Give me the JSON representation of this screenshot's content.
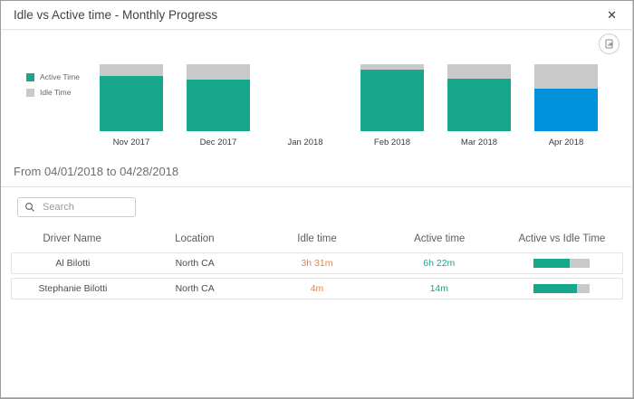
{
  "dialog": {
    "title": "Idle vs Active time - Monthly Progress",
    "close_glyph": "✕"
  },
  "chart_data": {
    "type": "bar",
    "subtype": "stacked-100-column",
    "title": "Idle vs Active time - Monthly Progress",
    "categories": [
      "Nov 2017",
      "Dec 2017",
      "Jan 2018",
      "Feb 2018",
      "Mar 2018",
      "Apr 2018"
    ],
    "series": [
      {
        "name": "Active Time",
        "values": [
          82,
          77,
          null,
          92,
          78,
          64
        ]
      },
      {
        "name": "Idle Time",
        "values": [
          18,
          23,
          null,
          8,
          22,
          36
        ]
      }
    ],
    "unit": "percent-of-month-total",
    "legend_position": "left",
    "grid": false,
    "selected_category": "Apr 2018",
    "colors": {
      "active": "#17a78c",
      "idle": "#c9c9c9",
      "selected_active": "#0192db"
    }
  },
  "filter": {
    "date_range_label": "From 04/01/2018 to 04/28/2018"
  },
  "search": {
    "placeholder": "Search",
    "value": ""
  },
  "table": {
    "columns": [
      "Driver Name",
      "Location",
      "Idle time",
      "Active time",
      "Active vs Idle Time"
    ],
    "rows": [
      {
        "driver": "Al Bilotti",
        "location": "North CA",
        "idle": "3h 31m",
        "active": "6h 22m",
        "active_ratio_pct": 65
      },
      {
        "driver": "Stephanie Bilotti",
        "location": "North CA",
        "idle": "4m",
        "active": "14m",
        "active_ratio_pct": 78
      }
    ]
  },
  "icons": {
    "close": "close-icon",
    "export": "export-chart-icon",
    "search": "search-icon"
  }
}
